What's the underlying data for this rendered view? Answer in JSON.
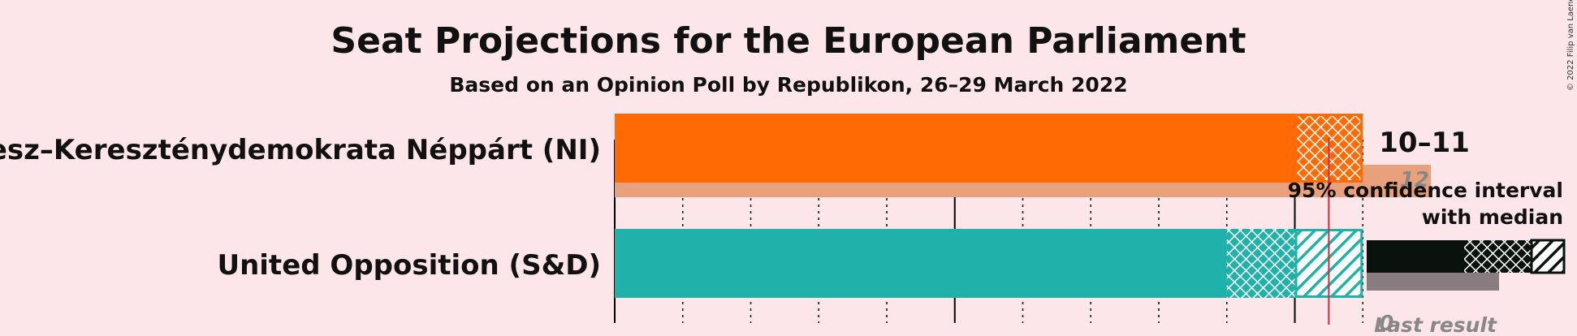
{
  "header": {
    "title": "Seat Projections for the European Parliament",
    "subtitle": "Based on an Opinion Poll by Republikon, 26–29 March 2022"
  },
  "copyright": "© 2022 Filip van Laenen",
  "legend": {
    "ci_line1": "95% confidence interval",
    "ci_line2": "with median",
    "last_result": "Last result"
  },
  "colors": {
    "background": "#fde6ea",
    "fidesz": "#ff6a05",
    "fidesz_last": "#e8a07d",
    "opposition": "#20b2aa",
    "majority_line": "#e0223a",
    "legend_dark": "#0a120e",
    "legend_last": "#887c80"
  },
  "chart_data": {
    "type": "bar",
    "title": "Seat Projections for the European Parliament",
    "subtitle": "Based on an Opinion Poll by Republikon, 26–29 March 2022",
    "xlim": [
      0,
      12
    ],
    "grid": true,
    "majority_line": 10.5,
    "series": [
      {
        "name": "Fidesz–Kereszténydemokrata Néppárt (NI)",
        "ci_low": 10,
        "median": 10,
        "ci_high": 11,
        "bar_start_hatch": 10,
        "range_label": "10–11",
        "last_result": 12,
        "last_result_label": "12",
        "color": "#ff6a05"
      },
      {
        "name": "United Opposition (S&D)",
        "ci_low": 9,
        "median": 10,
        "ci_high": 11,
        "range_label": "",
        "last_result": 0,
        "last_result_label": "0",
        "color": "#20b2aa"
      }
    ]
  }
}
